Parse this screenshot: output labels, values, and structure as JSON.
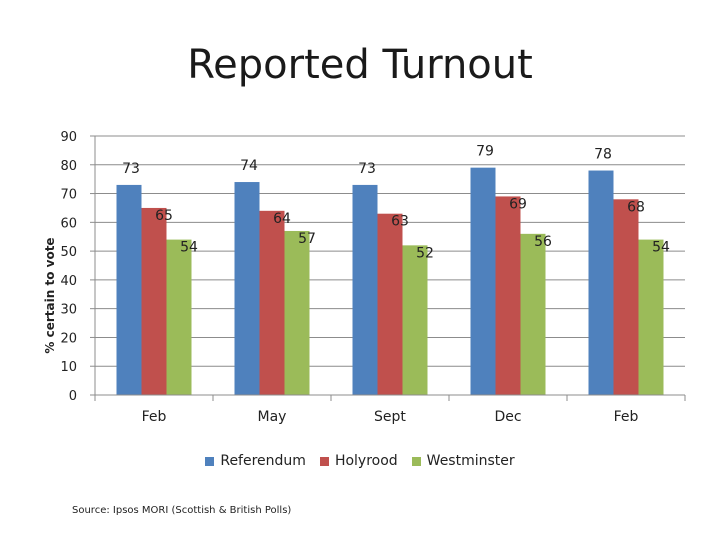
{
  "chart_data": {
    "type": "bar",
    "title": "Reported Turnout",
    "ylabel": "% certain to vote",
    "xlabel": "",
    "categories": [
      "Feb",
      "May",
      "Sept",
      "Dec",
      "Feb"
    ],
    "series": [
      {
        "name": "Referendum",
        "values": [
          73,
          74,
          73,
          79,
          78
        ],
        "color": "#4F81BD"
      },
      {
        "name": "Holyrood",
        "values": [
          65,
          64,
          63,
          69,
          68
        ],
        "color": "#C0504D"
      },
      {
        "name": "Westminster",
        "values": [
          54,
          57,
          52,
          56,
          54
        ],
        "color": "#9BBB59"
      }
    ],
    "ylim": [
      0,
      90
    ],
    "yticks": [
      0,
      10,
      20,
      30,
      40,
      50,
      60,
      70,
      80,
      90
    ],
    "grid": true,
    "legend": "bottom"
  },
  "source": "Source: Ipsos MORI (Scottish & British Polls)"
}
